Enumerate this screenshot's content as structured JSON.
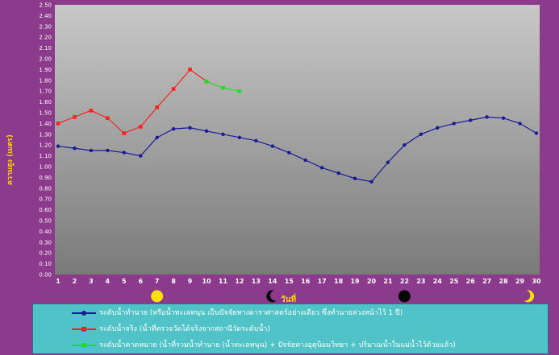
{
  "chart_data": {
    "type": "line",
    "title": "",
    "xlabel": "วันที่",
    "ylabel": "ความสูง (เมตร)",
    "ylim": [
      0,
      2.5
    ],
    "ytick_step": 0.1,
    "x": [
      1,
      2,
      3,
      4,
      5,
      6,
      7,
      8,
      9,
      10,
      11,
      12,
      13,
      14,
      15,
      16,
      17,
      18,
      19,
      20,
      21,
      22,
      23,
      24,
      25,
      26,
      27,
      28,
      29,
      30
    ],
    "series": [
      {
        "name": "ระดับน้ำทำนาย (หรือน้ำทะเลหนุน เป็นปัจจัยทางดาราศาสตร์อย่างเดียว ซึ่งทำนายล่วงหน้าไว้ 1 ปี)",
        "color": "#1a1a99",
        "x": [
          1,
          2,
          3,
          4,
          5,
          6,
          7,
          8,
          9,
          10,
          11,
          12,
          13,
          14,
          15,
          16,
          17,
          18,
          19,
          20,
          21,
          22,
          23,
          24,
          25,
          26,
          27,
          28,
          29,
          30
        ],
        "values": [
          1.19,
          1.17,
          1.15,
          1.15,
          1.13,
          1.1,
          1.27,
          1.35,
          1.36,
          1.33,
          1.3,
          1.27,
          1.24,
          1.19,
          1.13,
          1.06,
          0.99,
          0.94,
          0.89,
          0.86,
          1.04,
          1.2,
          1.3,
          1.36,
          1.4,
          1.43,
          1.46,
          1.45,
          1.4,
          1.31
        ]
      },
      {
        "name": "ระดับน้ำจริง (น้ำที่ตรวจวัดได้จริงจากสถานีวัดระดับน้ำ)",
        "color": "#ff2020",
        "x": [
          1,
          2,
          3,
          4,
          5,
          6,
          7,
          8,
          9,
          10
        ],
        "values": [
          1.4,
          1.46,
          1.52,
          1.45,
          1.31,
          1.37,
          1.55,
          1.72,
          1.9,
          1.79
        ]
      },
      {
        "name": "ระดับน้ำคาดหมาย (น้ำที่รวมน้ำทำนาย (น้ำทะเลหนุน) + ปัจจัยทางอุตุนิยมวิทยา + ปริมาณน้ำในแม่น้ำไว้ด้วยแล้ว)",
        "color": "#22dd22",
        "x": [
          10,
          11,
          12
        ],
        "values": [
          1.79,
          1.73,
          1.7
        ]
      }
    ],
    "moon_phases": [
      {
        "phase": "full-moon",
        "day": 7
      },
      {
        "phase": "waning-crescent",
        "day": 14
      },
      {
        "phase": "new-moon",
        "day": 22
      },
      {
        "phase": "waxing-crescent",
        "day": 29
      }
    ],
    "grid": false,
    "legend_position": "bottom"
  },
  "colors": {
    "frame": "#8c3a8c",
    "axis_text": "#ffffff",
    "label_accent": "#ffd400",
    "legend_bg": "#4fc3c8"
  }
}
